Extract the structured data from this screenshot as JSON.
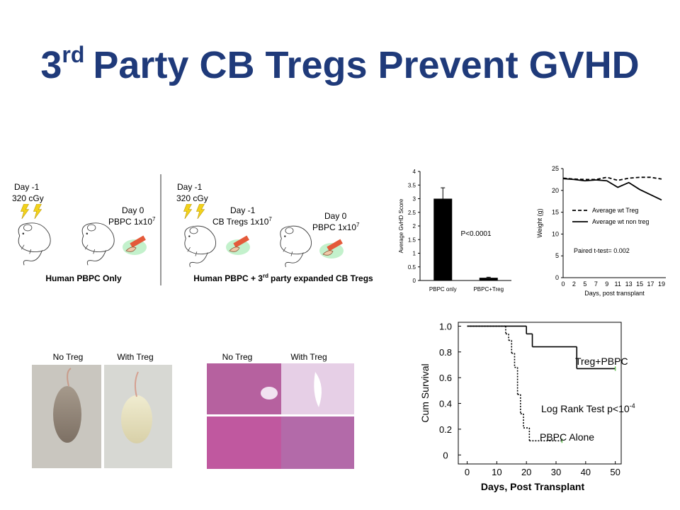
{
  "title": {
    "number": "3",
    "superscript": "rd",
    "text": "Party CB Tregs Prevent GVHD"
  },
  "schematic": {
    "left": {
      "irradiation": {
        "day": "Day -1",
        "dose": "320 cGy"
      },
      "injection": {
        "day": "Day 0",
        "cells": "PBPC 1x10",
        "exponent": "7"
      },
      "caption": "Human PBPC Only"
    },
    "right": {
      "irradiation": {
        "day": "Day -1",
        "dose": "320 cGy"
      },
      "treg_injection": {
        "day": "Day -1",
        "cells": "CB Tregs 1x10",
        "exponent": "7"
      },
      "pbpc_injection": {
        "day": "Day 0",
        "cells": "PBPC 1x10",
        "exponent": "7"
      },
      "caption": {
        "before": "Human PBPC + 3",
        "superscript": "rd",
        "after": "party expanded CB Tregs"
      }
    }
  },
  "photos": {
    "mouse": {
      "left": "No Treg",
      "right": "With Treg"
    },
    "histology": {
      "left": "No Treg",
      "right": "With Treg"
    }
  },
  "chart_data": [
    {
      "type": "bar",
      "ylabel": "Average GvHD Score",
      "categories": [
        "PBPC only",
        "PBPC+Treg"
      ],
      "values": [
        3.0,
        0.1
      ],
      "errors": [
        0.4,
        0.02
      ],
      "color": "#000000",
      "ylim": [
        0,
        4
      ],
      "yticks": [
        0,
        0.5,
        1,
        1.5,
        2,
        2.5,
        3,
        3.5,
        4
      ],
      "annotation": "P<0.0001"
    },
    {
      "type": "line",
      "ylabel": "Weight (g)",
      "xlabel": "Days, post transplant",
      "categories": [
        "0",
        "2",
        "5",
        "7",
        "9",
        "11",
        "13",
        "15",
        "17",
        "19"
      ],
      "series": [
        {
          "name": "Average wt Treg",
          "color": "#000000",
          "dash": true,
          "values": [
            22.8,
            22.6,
            22.5,
            22.5,
            23,
            22.3,
            22.8,
            23,
            23,
            22.6
          ]
        },
        {
          "name": "Average wt non treg",
          "color": "#000000",
          "dash": false,
          "values": [
            22.7,
            22.5,
            22.2,
            22.4,
            22.2,
            20.7,
            21.8,
            20.2,
            19,
            17.8
          ]
        }
      ],
      "ylim": [
        0,
        25
      ],
      "yticks": [
        0,
        5,
        10,
        15,
        20,
        25
      ],
      "annotation": "Paired t-test= 0.002"
    },
    {
      "type": "step",
      "ylabel": "Cum Survival",
      "xlabel": "Days, Post Transplant",
      "series": [
        {
          "name": "Treg+PBPC",
          "color": "#000000",
          "dash": false,
          "x": [
            0,
            20,
            22,
            37,
            50
          ],
          "values": [
            1.0,
            0.94,
            0.84,
            0.67,
            0.67
          ]
        },
        {
          "name": "PBPC Alone",
          "color": "#000000",
          "dash": true,
          "x": [
            0,
            13,
            14,
            15,
            16,
            17,
            18,
            19,
            21,
            32
          ],
          "values": [
            1.0,
            0.94,
            0.89,
            0.79,
            0.68,
            0.47,
            0.32,
            0.21,
            0.11,
            0.11
          ]
        }
      ],
      "annotation": {
        "text": "Log Rank Test p<10",
        "exponent": "-4"
      },
      "xlim": [
        -3,
        52
      ],
      "xticks": [
        0,
        10,
        20,
        30,
        40,
        50
      ],
      "ylim": [
        -0.07,
        1.03
      ],
      "yticks": [
        {
          "value": 1,
          "label": "1.0"
        },
        0.8,
        0.6,
        0.4,
        0.2,
        0
      ]
    }
  ]
}
